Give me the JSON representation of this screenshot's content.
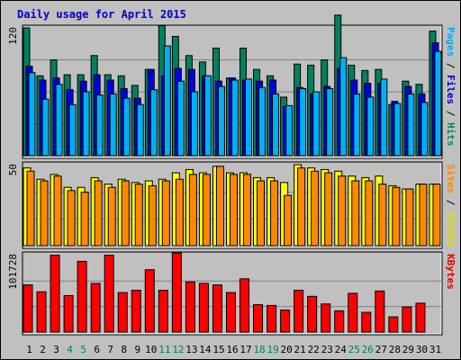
{
  "chart_data": {
    "type": "bar",
    "title": "Daily usage for April 2015",
    "days": [
      "1",
      "2",
      "3",
      "4",
      "5",
      "6",
      "7",
      "8",
      "9",
      "10",
      "11",
      "12",
      "13",
      "14",
      "15",
      "16",
      "17",
      "18",
      "19",
      "20",
      "21",
      "22",
      "23",
      "24",
      "25",
      "26",
      "27",
      "28",
      "29",
      "30",
      "31"
    ],
    "weekend_days": [
      "4",
      "5",
      "11",
      "12",
      "18",
      "19",
      "25",
      "26"
    ],
    "panels": [
      {
        "name": "hits-files-pages",
        "ymax_label": "120",
        "ymax": 120,
        "right_label": [
          {
            "text": "Pages",
            "color": "#00aaee"
          },
          {
            "text": " / ",
            "color": "#000000"
          },
          {
            "text": "Files",
            "color": "#0000cc"
          },
          {
            "text": " / ",
            "color": "#000000"
          },
          {
            "text": "Hits",
            "color": "#008866"
          }
        ],
        "series": [
          {
            "name": "Hits",
            "color": "#00805f",
            "values": [
              120,
              75,
              90,
              76,
              76,
              94,
              76,
              75,
              66,
              81,
              122,
              112,
              94,
              88,
              101,
              73,
              101,
              81,
              75,
              55,
              86,
              85,
              90,
              132,
              85,
              80,
              81,
              48,
              70,
              67,
              117
            ]
          },
          {
            "name": "Files",
            "color": "#0000e0",
            "values": [
              84,
              71,
              73,
              62,
              70,
              76,
              71,
              63,
              54,
              81,
              75,
              82,
              81,
              75,
              70,
              73,
              71,
              70,
              71,
              46,
              64,
              58,
              65,
              82,
              71,
              68,
              68,
              51,
              65,
              58,
              106
            ]
          },
          {
            "name": "Pages",
            "color": "#00b0f0",
            "values": [
              78,
              53,
              67,
              48,
              60,
              57,
              58,
              54,
              48,
              62,
              103,
              70,
              60,
              75,
              65,
              71,
              72,
              64,
              58,
              47,
              63,
              60,
              63,
              92,
              58,
              55,
              72,
              49,
              58,
              50,
              98
            ]
          }
        ]
      },
      {
        "name": "visits-sites",
        "ymax_label": "50",
        "ymax": 50,
        "right_label": [
          {
            "text": "Sites",
            "color": "#ff8800"
          },
          {
            "text": " / ",
            "color": "#000000"
          },
          {
            "text": "Visits",
            "color": "#e0e000"
          }
        ],
        "series": [
          {
            "name": "Visits",
            "color": "#ffff00",
            "values": [
              48,
              41,
              44,
              36,
              36,
              42,
              38,
              41,
              39,
              40,
              41,
              45,
              47,
              45,
              49,
              45,
              45,
              42,
              42,
              39,
              50,
              48,
              47,
              46,
              43,
              42,
              43,
              37,
              35,
              38,
              38
            ]
          },
          {
            "name": "Sites",
            "color": "#ff8800",
            "values": [
              46,
              40,
              43,
              34,
              33,
              40,
              36,
              40,
              38,
              37,
              40,
              41,
              44,
              44,
              49,
              44,
              44,
              40,
              40,
              31,
              48,
              46,
              45,
              43,
              40,
              40,
              38,
              36,
              35,
              38,
              38
            ]
          }
        ]
      },
      {
        "name": "kbytes",
        "ymax_label": "101728",
        "ymax": 101728,
        "right_label": [
          {
            "text": "KBytes",
            "color": "#dd0000"
          }
        ],
        "series": [
          {
            "name": "KBytes",
            "color": "#ff0000",
            "values": [
              62000,
              53000,
              101000,
              48000,
              93000,
              64000,
              101000,
              52000,
              55000,
              82000,
              55000,
              104000,
              66000,
              64000,
              62000,
              52000,
              70000,
              36000,
              35000,
              29000,
              55000,
              47000,
              37000,
              28000,
              51000,
              26000,
              54000,
              20000,
              33000,
              38000,
              0
            ]
          }
        ]
      }
    ]
  }
}
